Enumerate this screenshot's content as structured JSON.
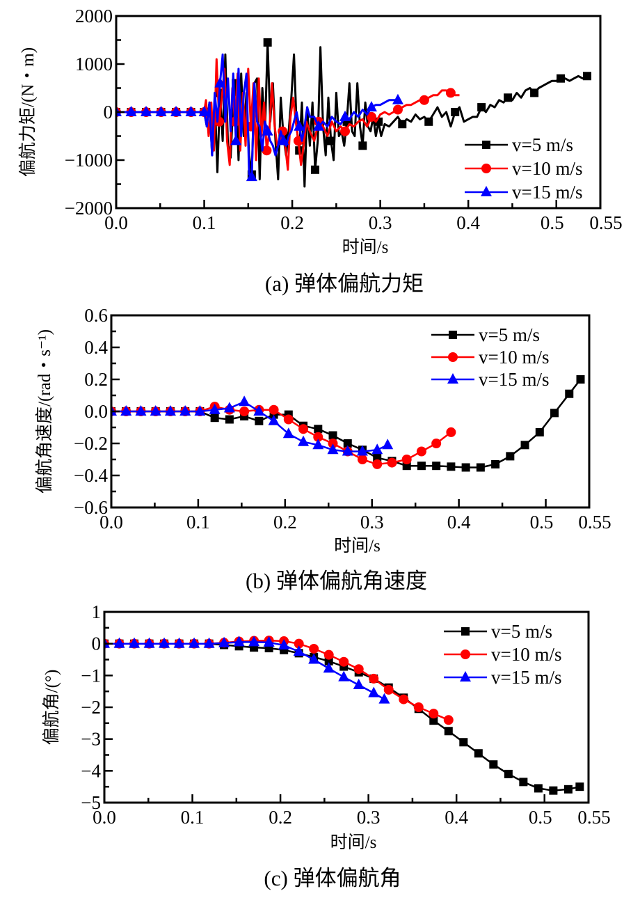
{
  "chart_data": [
    {
      "id": "a",
      "type": "line",
      "caption": "(a)  弹体偏航力矩",
      "title": "",
      "xlabel": "时间/s",
      "ylabel": "偏航力矩/(N・m)",
      "xlim": [
        0,
        0.55
      ],
      "ylim": [
        -2000,
        2000
      ],
      "xticks": [
        0.0,
        0.1,
        0.2,
        0.3,
        0.4,
        0.5,
        0.55
      ],
      "xtick_labels": [
        "0.0",
        "0.1",
        "0.2",
        "0.3",
        "0.4",
        "0.5",
        "0.55"
      ],
      "xminor": [
        0.05,
        0.15,
        0.25,
        0.35,
        0.45
      ],
      "yticks": [
        -2000,
        -1000,
        0,
        1000,
        2000
      ],
      "ytick_labels": [
        "−2000",
        "−1000",
        "0",
        "1000",
        "2000"
      ],
      "yminor": [
        -1500,
        -500,
        500,
        1500
      ],
      "grid": false,
      "legend_position": "bottom-right",
      "series": [
        {
          "name": "v=5 m/s",
          "color": "#000000",
          "marker": "square",
          "x": [
            0,
            0.017,
            0.034,
            0.051,
            0.068,
            0.085,
            0.1,
            0.103,
            0.106,
            0.109,
            0.112,
            0.115,
            0.118,
            0.121,
            0.124,
            0.127,
            0.13,
            0.133,
            0.136,
            0.139,
            0.142,
            0.145,
            0.148,
            0.151,
            0.154,
            0.157,
            0.16,
            0.163,
            0.166,
            0.169,
            0.172,
            0.175,
            0.178,
            0.181,
            0.184,
            0.187,
            0.19,
            0.193,
            0.196,
            0.199,
            0.202,
            0.205,
            0.208,
            0.211,
            0.214,
            0.217,
            0.22,
            0.223,
            0.226,
            0.229,
            0.232,
            0.235,
            0.238,
            0.241,
            0.244,
            0.247,
            0.25,
            0.253,
            0.256,
            0.259,
            0.262,
            0.265,
            0.268,
            0.271,
            0.274,
            0.277,
            0.28,
            0.283,
            0.286,
            0.289,
            0.292,
            0.295,
            0.298,
            0.301,
            0.305,
            0.31,
            0.315,
            0.32,
            0.325,
            0.33,
            0.335,
            0.34,
            0.345,
            0.35,
            0.355,
            0.36,
            0.365,
            0.37,
            0.375,
            0.38,
            0.385,
            0.39,
            0.395,
            0.4,
            0.405,
            0.41,
            0.415,
            0.42,
            0.425,
            0.43,
            0.435,
            0.44,
            0.445,
            0.45,
            0.455,
            0.46,
            0.465,
            0.47,
            0.475,
            0.48,
            0.485,
            0.49,
            0.495,
            0.5,
            0.505,
            0.51,
            0.515,
            0.52,
            0.525,
            0.53,
            0.535,
            0.538
          ],
          "y": [
            0,
            0,
            0,
            0,
            0,
            0,
            0,
            -300,
            200,
            -900,
            300,
            -1250,
            400,
            -600,
            1200,
            -700,
            -950,
            200,
            600,
            -1000,
            800,
            -500,
            400,
            -900,
            -1300,
            600,
            700,
            -1400,
            500,
            -400,
            1450,
            -200,
            600,
            -600,
            -1400,
            300,
            -500,
            -900,
            -400,
            300,
            1200,
            -300,
            -800,
            200,
            -1550,
            100,
            -700,
            200,
            -1200,
            -600,
            1350,
            -300,
            -900,
            300,
            -600,
            -1000,
            400,
            -500,
            -400,
            -700,
            -200,
            600,
            -400,
            -500,
            600,
            -300,
            -700,
            200,
            -300,
            -400,
            -100,
            -500,
            -200,
            -500,
            -250,
            -300,
            -200,
            -100,
            -250,
            -150,
            -200,
            -50,
            -150,
            -100,
            -200,
            -50,
            100,
            -100,
            0,
            -300,
            0,
            100,
            -200,
            -150,
            -100,
            -100,
            100,
            0,
            150,
            100,
            250,
            200,
            300,
            250,
            400,
            300,
            450,
            500,
            400,
            500,
            550,
            600,
            650,
            650,
            700,
            700,
            650,
            700,
            750,
            700,
            750,
            800
          ]
        },
        {
          "name": "v=10 m/s",
          "color": "#ff0000",
          "marker": "circle",
          "x": [
            0,
            0.017,
            0.034,
            0.051,
            0.068,
            0.085,
            0.1,
            0.102,
            0.105,
            0.108,
            0.111,
            0.114,
            0.117,
            0.12,
            0.123,
            0.126,
            0.129,
            0.132,
            0.135,
            0.138,
            0.141,
            0.144,
            0.147,
            0.15,
            0.153,
            0.156,
            0.159,
            0.162,
            0.165,
            0.168,
            0.171,
            0.174,
            0.177,
            0.18,
            0.183,
            0.186,
            0.189,
            0.192,
            0.195,
            0.198,
            0.201,
            0.204,
            0.207,
            0.21,
            0.213,
            0.216,
            0.22,
            0.225,
            0.23,
            0.235,
            0.24,
            0.245,
            0.25,
            0.255,
            0.26,
            0.265,
            0.27,
            0.275,
            0.28,
            0.285,
            0.29,
            0.295,
            0.3,
            0.305,
            0.31,
            0.315,
            0.32,
            0.325,
            0.33,
            0.335,
            0.34,
            0.345,
            0.35,
            0.355,
            0.36,
            0.365,
            0.37,
            0.375,
            0.38,
            0.385,
            0.39
          ],
          "y": [
            0,
            0,
            0,
            0,
            0,
            0,
            0,
            250,
            -500,
            200,
            -800,
            1100,
            -200,
            300,
            900,
            -600,
            -1100,
            500,
            -200,
            800,
            -800,
            400,
            -700,
            900,
            -300,
            600,
            -1000,
            700,
            -500,
            200,
            -800,
            -400,
            600,
            -300,
            -700,
            -600,
            -400,
            -700,
            -1200,
            -100,
            300,
            -200,
            -600,
            -1100,
            -700,
            -200,
            -400,
            -600,
            -200,
            -300,
            -500,
            -200,
            -400,
            -300,
            -400,
            -250,
            -300,
            -200,
            -150,
            -300,
            -100,
            -200,
            -50,
            0,
            -50,
            0,
            50,
            100,
            150,
            150,
            200,
            250,
            250,
            300,
            350,
            350,
            450,
            450,
            400,
            350,
            350
          ]
        },
        {
          "name": "v=15 m/s",
          "color": "#0000ff",
          "marker": "triangle",
          "x": [
            0,
            0.017,
            0.034,
            0.051,
            0.068,
            0.085,
            0.1,
            0.103,
            0.106,
            0.109,
            0.112,
            0.115,
            0.118,
            0.121,
            0.124,
            0.127,
            0.13,
            0.133,
            0.136,
            0.139,
            0.142,
            0.145,
            0.148,
            0.151,
            0.154,
            0.157,
            0.16,
            0.163,
            0.166,
            0.169,
            0.172,
            0.175,
            0.178,
            0.181,
            0.184,
            0.187,
            0.19,
            0.193,
            0.196,
            0.199,
            0.202,
            0.205,
            0.208,
            0.211,
            0.214,
            0.217,
            0.22,
            0.225,
            0.23,
            0.235,
            0.24,
            0.245,
            0.25,
            0.255,
            0.26,
            0.265,
            0.27,
            0.275,
            0.28,
            0.285,
            0.29,
            0.295,
            0.3,
            0.305,
            0.31,
            0.315,
            0.32,
            0.323
          ],
          "y": [
            0,
            0,
            0,
            0,
            0,
            0,
            0,
            -300,
            200,
            -900,
            400,
            -200,
            600,
            1200,
            -200,
            700,
            -400,
            800,
            -600,
            900,
            -500,
            400,
            800,
            -1300,
            -1350,
            600,
            -200,
            -300,
            -800,
            -200,
            -400,
            -600,
            -700,
            -900,
            -700,
            -400,
            -600,
            -700,
            -500,
            -400,
            -200,
            0,
            -300,
            -600,
            -300,
            100,
            -100,
            -100,
            -300,
            -200,
            -300,
            -100,
            -200,
            -250,
            -100,
            -150,
            0,
            -100,
            50,
            -50,
            100,
            150,
            150,
            200,
            250,
            250,
            250,
            250
          ]
        }
      ]
    },
    {
      "id": "b",
      "type": "line",
      "caption": "(b)  弹体偏航角速度",
      "title": "",
      "xlabel": "时间/s",
      "ylabel": "偏航角速度/(rad・s⁻¹)",
      "xlim": [
        0,
        0.55
      ],
      "ylim": [
        -0.6,
        0.6
      ],
      "xticks": [
        0.0,
        0.1,
        0.2,
        0.3,
        0.4,
        0.5,
        0.55
      ],
      "xtick_labels": [
        "0.0",
        "0.1",
        "0.2",
        "0.3",
        "0.4",
        "0.5",
        "0.55"
      ],
      "xminor": [
        0.05,
        0.15,
        0.25,
        0.35,
        0.45
      ],
      "yticks": [
        -0.6,
        -0.4,
        -0.2,
        0.0,
        0.2,
        0.4,
        0.6
      ],
      "ytick_labels": [
        "−0.6",
        "−0.4",
        "−0.2",
        "0.0",
        "0.2",
        "0.4",
        "0.6"
      ],
      "yminor": [
        -0.5,
        -0.3,
        -0.1,
        0.1,
        0.3,
        0.5
      ],
      "grid": false,
      "legend_position": "top-right",
      "series": [
        {
          "name": "v=5 m/s",
          "color": "#000000",
          "marker": "square",
          "x": [
            0,
            0.017,
            0.034,
            0.051,
            0.068,
            0.085,
            0.102,
            0.119,
            0.136,
            0.153,
            0.17,
            0.187,
            0.204,
            0.221,
            0.238,
            0.255,
            0.272,
            0.289,
            0.306,
            0.323,
            0.34,
            0.357,
            0.374,
            0.391,
            0.408,
            0.425,
            0.442,
            0.459,
            0.476,
            0.493,
            0.51,
            0.527,
            0.54
          ],
          "y": [
            0,
            0,
            0,
            0,
            0,
            0,
            0,
            -0.04,
            -0.05,
            -0.03,
            -0.06,
            -0.02,
            -0.02,
            -0.09,
            -0.11,
            -0.15,
            -0.2,
            -0.24,
            -0.29,
            -0.31,
            -0.34,
            -0.34,
            -0.34,
            -0.345,
            -0.35,
            -0.35,
            -0.33,
            -0.28,
            -0.21,
            -0.13,
            -0.01,
            0.11,
            0.2
          ]
        },
        {
          "name": "v=10 m/s",
          "color": "#ff0000",
          "marker": "circle",
          "x": [
            0,
            0.017,
            0.034,
            0.051,
            0.068,
            0.085,
            0.102,
            0.119,
            0.136,
            0.153,
            0.17,
            0.187,
            0.204,
            0.221,
            0.238,
            0.255,
            0.272,
            0.289,
            0.306,
            0.323,
            0.34,
            0.357,
            0.374,
            0.391
          ],
          "y": [
            0,
            0,
            0,
            0,
            0,
            0,
            0,
            0.03,
            0.01,
            0,
            0.01,
            0.01,
            -0.05,
            -0.11,
            -0.16,
            -0.2,
            -0.25,
            -0.3,
            -0.33,
            -0.32,
            -0.3,
            -0.25,
            -0.2,
            -0.13
          ]
        },
        {
          "name": "v=15 m/s",
          "color": "#0000ff",
          "marker": "triangle",
          "x": [
            0,
            0.017,
            0.034,
            0.051,
            0.068,
            0.085,
            0.102,
            0.119,
            0.136,
            0.153,
            0.17,
            0.187,
            0.204,
            0.221,
            0.238,
            0.255,
            0.272,
            0.289,
            0.306,
            0.318
          ],
          "y": [
            0,
            0,
            0,
            0,
            0,
            0,
            0,
            0.01,
            0.02,
            0.06,
            0.0,
            -0.06,
            -0.14,
            -0.19,
            -0.21,
            -0.24,
            -0.25,
            -0.25,
            -0.24,
            -0.21
          ]
        }
      ]
    },
    {
      "id": "c",
      "type": "line",
      "caption": "(c)  弹体偏航角",
      "title": "",
      "xlabel": "时间/s",
      "ylabel": "偏航角/(°)",
      "xlim": [
        0,
        0.55
      ],
      "ylim": [
        -5,
        1
      ],
      "xticks": [
        0.0,
        0.1,
        0.2,
        0.3,
        0.4,
        0.5,
        0.55
      ],
      "xtick_labels": [
        "0.0",
        "0.1",
        "0.2",
        "0.3",
        "0.4",
        "0.5",
        "0.55"
      ],
      "xminor": [
        0.05,
        0.15,
        0.25,
        0.35,
        0.45
      ],
      "yticks": [
        -5,
        -4,
        -3,
        -2,
        -1,
        0,
        1
      ],
      "ytick_labels": [
        "−5",
        "−4",
        "−3",
        "−2",
        "−1",
        "0",
        "1"
      ],
      "yminor": [
        -4.5,
        -3.5,
        -2.5,
        -1.5,
        -0.5,
        0.5
      ],
      "grid": false,
      "legend_position": "top-right",
      "series": [
        {
          "name": "v=5 m/s",
          "color": "#000000",
          "marker": "square",
          "x": [
            0,
            0.017,
            0.034,
            0.051,
            0.068,
            0.085,
            0.102,
            0.119,
            0.136,
            0.153,
            0.17,
            0.187,
            0.204,
            0.221,
            0.238,
            0.255,
            0.272,
            0.289,
            0.306,
            0.323,
            0.34,
            0.357,
            0.374,
            0.391,
            0.408,
            0.425,
            0.442,
            0.459,
            0.476,
            0.493,
            0.51,
            0.527,
            0.54
          ],
          "y": [
            0,
            0,
            0,
            0,
            0,
            0,
            0,
            0,
            -0.04,
            -0.08,
            -0.12,
            -0.14,
            -0.2,
            -0.3,
            -0.42,
            -0.55,
            -0.72,
            -0.9,
            -1.1,
            -1.38,
            -1.7,
            -2.05,
            -2.42,
            -2.75,
            -3.1,
            -3.45,
            -3.8,
            -4.1,
            -4.35,
            -4.55,
            -4.62,
            -4.58,
            -4.5
          ]
        },
        {
          "name": "v=10 m/s",
          "color": "#ff0000",
          "marker": "circle",
          "x": [
            0,
            0.017,
            0.034,
            0.051,
            0.068,
            0.085,
            0.102,
            0.119,
            0.136,
            0.153,
            0.17,
            0.187,
            0.204,
            0.221,
            0.238,
            0.255,
            0.272,
            0.289,
            0.306,
            0.323,
            0.34,
            0.357,
            0.374,
            0.391
          ],
          "y": [
            0,
            0,
            0,
            0,
            0,
            0,
            0,
            0,
            0.03,
            0.07,
            0.09,
            0.1,
            0.08,
            0.0,
            -0.16,
            -0.35,
            -0.57,
            -0.8,
            -1.1,
            -1.45,
            -1.75,
            -2.0,
            -2.2,
            -2.4
          ]
        },
        {
          "name": "v=15 m/s",
          "color": "#0000ff",
          "marker": "triangle",
          "x": [
            0,
            0.017,
            0.034,
            0.051,
            0.068,
            0.085,
            0.102,
            0.119,
            0.136,
            0.153,
            0.17,
            0.187,
            0.204,
            0.221,
            0.238,
            0.255,
            0.272,
            0.289,
            0.306,
            0.318
          ],
          "y": [
            0,
            0,
            0,
            0,
            0,
            0,
            0,
            0,
            0.02,
            0.05,
            0.05,
            0.04,
            -0.05,
            -0.25,
            -0.5,
            -0.78,
            -1.05,
            -1.3,
            -1.55,
            -1.75
          ]
        }
      ]
    }
  ]
}
